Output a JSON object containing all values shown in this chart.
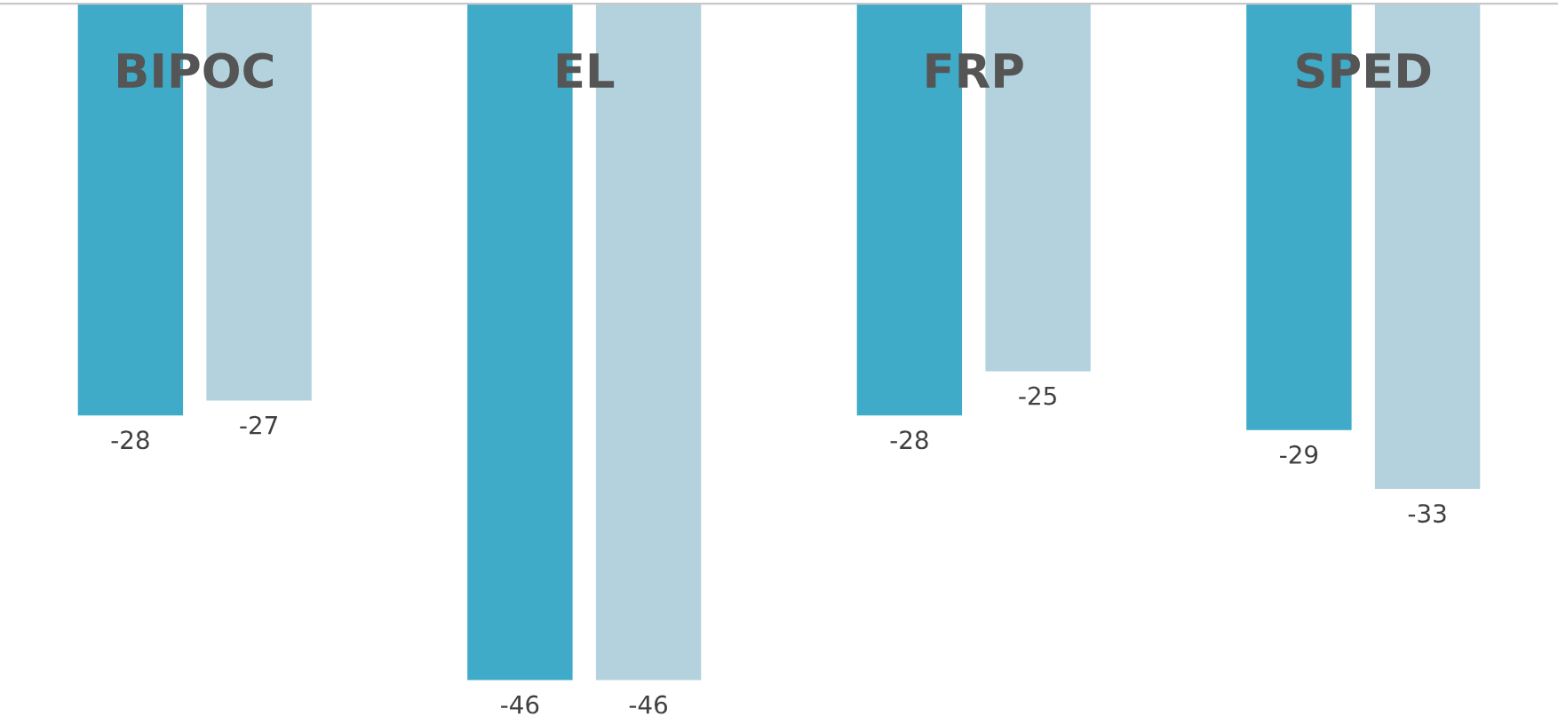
{
  "chart_data": {
    "type": "bar",
    "categories": [
      "BIPOC",
      "EL",
      "FRP",
      "SPED"
    ],
    "series": [
      {
        "color": "#3fabc8",
        "values": [
          -28,
          -46,
          -28,
          -29
        ]
      },
      {
        "color": "#b3d2de",
        "values": [
          -27,
          -46,
          -25,
          -33
        ]
      }
    ],
    "data_labels": true,
    "tick_labels": "x"
  }
}
